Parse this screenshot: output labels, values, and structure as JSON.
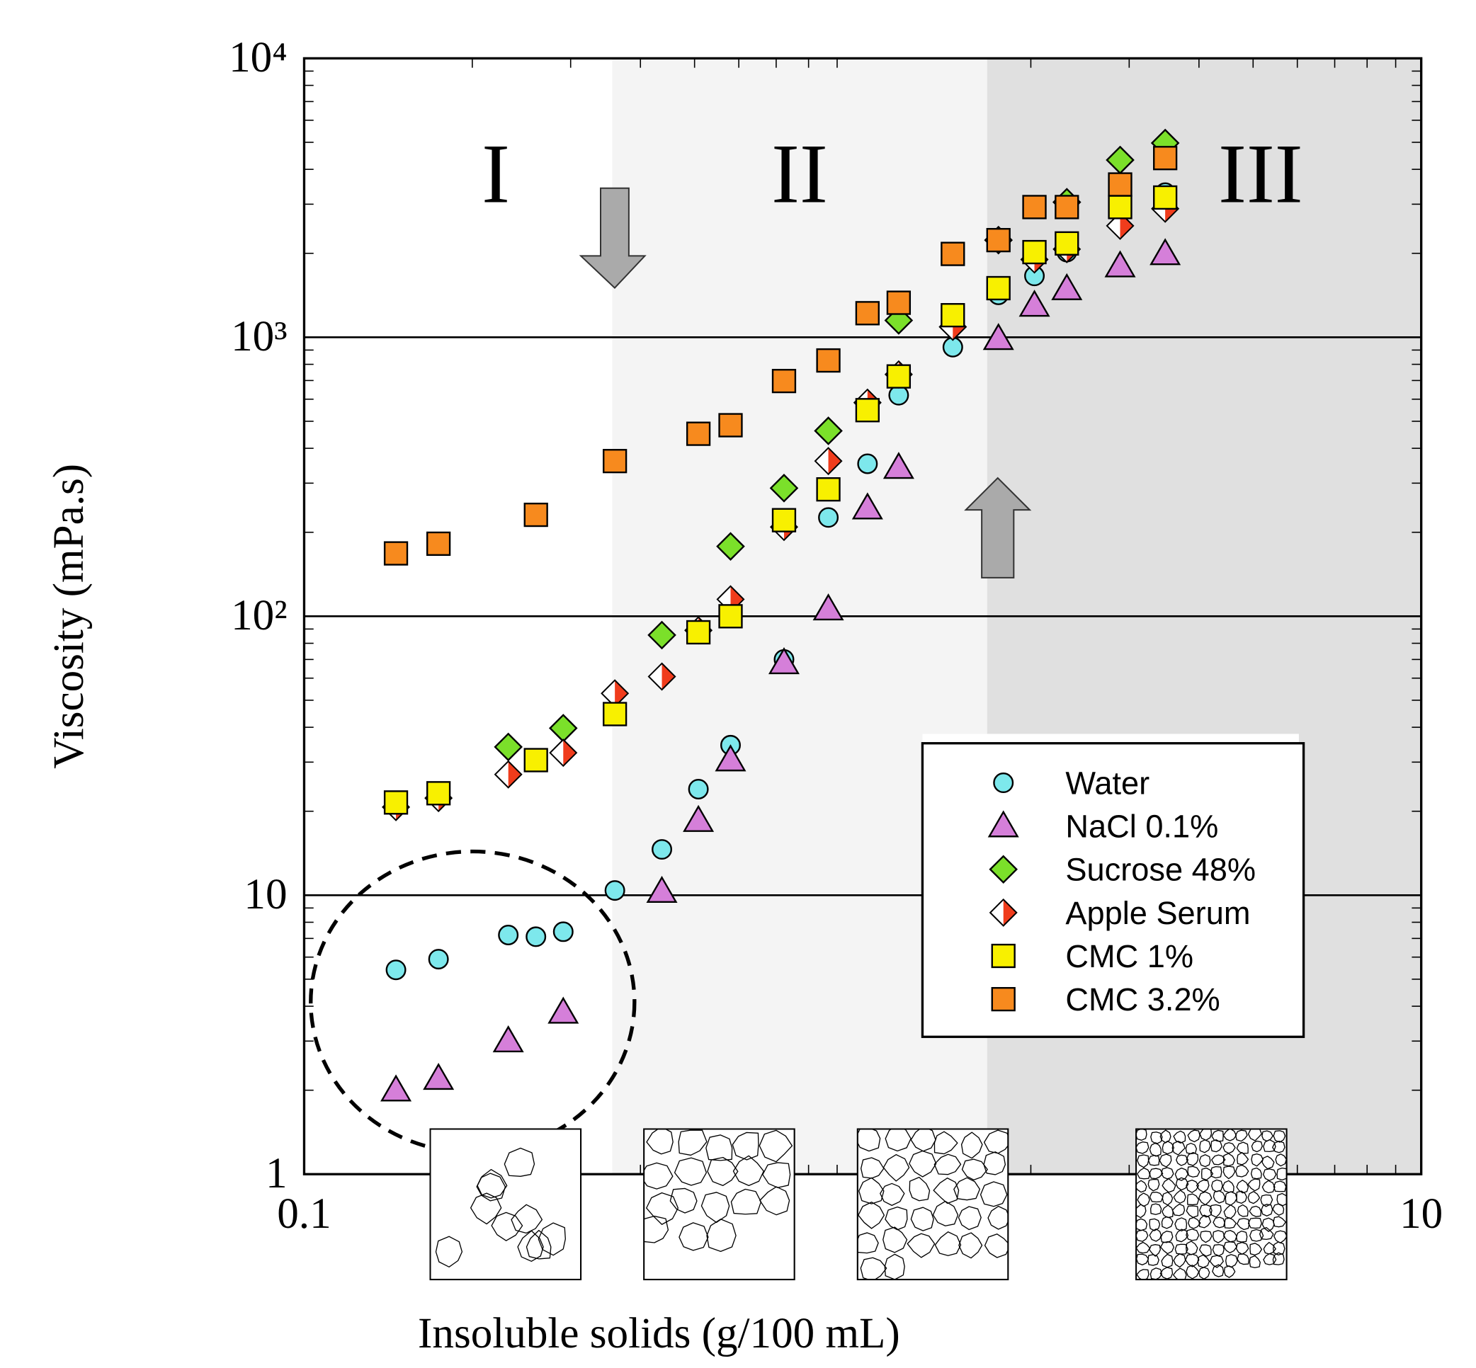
{
  "chart_data": {
    "type": "scatter",
    "xlabel": "Insoluble solids (g/100 mL)",
    "ylabel": "Viscosity (mPa.s)",
    "log_x": true,
    "log_y": true,
    "xlim": [
      0.1,
      10
    ],
    "ylim": [
      1,
      10000
    ],
    "xticks": [
      0.1,
      10
    ],
    "yticks": [
      1,
      10,
      {
        "value": 100,
        "label": "10²"
      },
      {
        "value": 1000,
        "label": "10³"
      },
      {
        "value": 10000,
        "label": "10⁴"
      }
    ],
    "grid": true,
    "legend": "lower right",
    "regions": [
      {
        "label": "I",
        "xlim": [
          0.1,
          0.356
        ],
        "color": "#ffffff"
      },
      {
        "label": "II",
        "xlim": [
          0.356,
          1.67
        ],
        "color": "#f4f4f4"
      },
      {
        "label": "III",
        "xlim": [
          1.67,
          10
        ],
        "color": "#e0e0e0"
      }
    ],
    "series": [
      {
        "name": "Water",
        "marker": "circle",
        "color": "#7de8ec",
        "x": [
          0.146,
          0.174,
          0.232,
          0.26,
          0.291,
          0.36,
          0.437,
          0.508,
          0.58,
          0.723,
          0.868,
          1.02,
          1.16,
          1.45,
          1.75,
          2.03,
          2.32,
          3.48
        ],
        "values": [
          5.4,
          5.9,
          7.2,
          7.1,
          7.4,
          10.4,
          14.6,
          24,
          34.5,
          70,
          226,
          352,
          620,
          922,
          1420,
          1660,
          2020,
          3300
        ]
      },
      {
        "name": "NaCl 0.1%",
        "marker": "triangle",
        "color": "#d57fd9",
        "x": [
          0.146,
          0.174,
          0.232,
          0.291,
          0.437,
          0.508,
          0.58,
          0.723,
          0.868,
          1.02,
          1.16,
          1.75,
          2.03,
          2.32,
          2.89,
          3.48
        ],
        "values": [
          2.0,
          2.2,
          3.0,
          3.8,
          10.3,
          18.5,
          30.5,
          68,
          106,
          244,
          341,
          988,
          1300,
          1490,
          1800,
          1990
        ]
      },
      {
        "name": "Sucrose 48%",
        "marker": "diamond",
        "color": "#7be02a",
        "x": [
          0.232,
          0.291,
          0.437,
          0.58,
          0.723,
          0.868,
          1.16,
          1.75,
          2.32,
          2.89,
          3.48
        ],
        "values": [
          34,
          39.7,
          85.6,
          178,
          288,
          462,
          1150,
          2230,
          3050,
          4320,
          4970
        ]
      },
      {
        "name": "Apple Serum",
        "marker": "half-diamond",
        "color": "#f03c1c",
        "x": [
          0.146,
          0.174,
          0.232,
          0.291,
          0.36,
          0.437,
          0.508,
          0.58,
          0.723,
          0.868,
          1.02,
          1.16,
          1.45,
          1.75,
          2.03,
          2.32,
          2.89,
          3.48
        ],
        "values": [
          20.7,
          22.3,
          27.1,
          32.4,
          52.9,
          60.8,
          89,
          115,
          209,
          360,
          583,
          736,
          1090,
          2230,
          1900,
          2070,
          2510,
          2890
        ]
      },
      {
        "name": "CMC 1%",
        "marker": "square",
        "color": "#f8f000",
        "x": [
          0.146,
          0.174,
          0.26,
          0.36,
          0.508,
          0.58,
          0.723,
          0.868,
          1.02,
          1.16,
          1.45,
          1.75,
          2.03,
          2.32,
          2.89,
          3.48
        ],
        "values": [
          21.5,
          23.2,
          30.5,
          44.6,
          87.6,
          100,
          221,
          285,
          548,
          724,
          1200,
          1500,
          2020,
          2170,
          2930,
          3170
        ]
      },
      {
        "name": "CMC 3.2%",
        "marker": "square",
        "color": "#f78a1e",
        "x": [
          0.146,
          0.174,
          0.26,
          0.36,
          0.508,
          0.58,
          0.723,
          0.868,
          1.02,
          1.16,
          1.45,
          1.75,
          2.03,
          2.32,
          2.89,
          3.48
        ],
        "values": [
          168,
          182,
          231,
          360,
          451,
          484,
          697,
          826,
          1220,
          1330,
          1990,
          2230,
          2930,
          2930,
          3530,
          4390
        ]
      }
    ]
  }
}
